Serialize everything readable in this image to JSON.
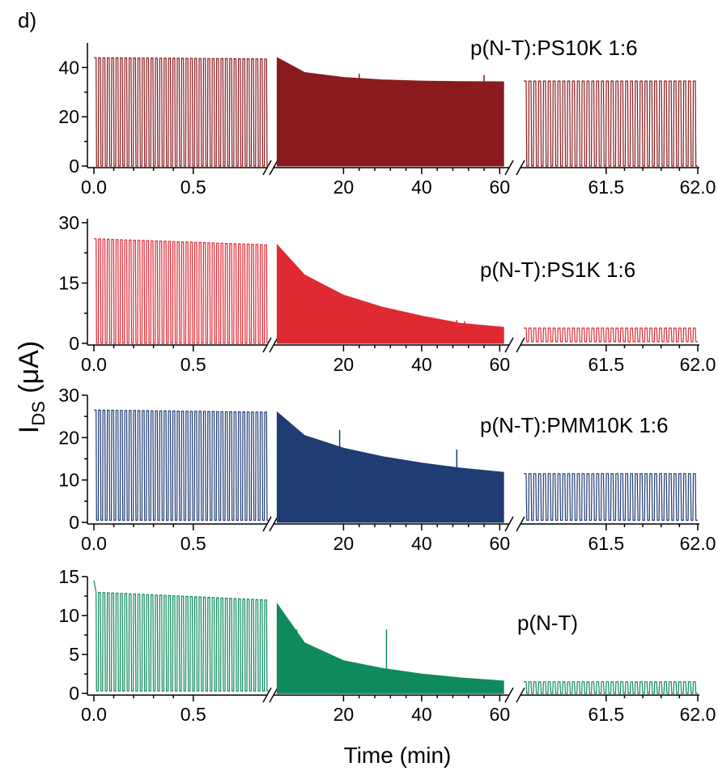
{
  "figure": {
    "panel_label": "d)",
    "xlabel": "Time (min)",
    "ylabel_main": "I",
    "ylabel_sub": "DS",
    "ylabel_unit": " (μA)"
  },
  "chart_data": [
    {
      "type": "line",
      "title": "p(N-T):PS10K 1:6",
      "color": "#8b1a1e",
      "ylim": [
        0,
        50
      ],
      "yticks": [
        0,
        20,
        40
      ],
      "ytick_labels": [
        "0",
        "20",
        "40"
      ],
      "segments": [
        {
          "kind": "pulses",
          "xlim": [
            0.0,
            0.88
          ],
          "xticks": [
            0.0,
            0.5
          ],
          "xtick_labels": [
            "0.0",
            "0.5"
          ],
          "cycles": 40,
          "high_start": 44,
          "high_end": 43.5,
          "low": 0
        },
        {
          "kind": "filled",
          "xlim": [
            2.5,
            62.0
          ],
          "xticks": [
            20,
            40,
            60
          ],
          "xtick_labels": [
            "20",
            "40",
            "60"
          ],
          "envelope_x": [
            3,
            10,
            20,
            30,
            40,
            50,
            61
          ],
          "envelope_y": [
            44,
            38,
            36,
            35,
            34.5,
            34.3,
            34.2
          ],
          "spikes": [
            [
              24,
              37.5
            ],
            [
              56,
              37
            ]
          ]
        },
        {
          "kind": "pulses",
          "xlim": [
            61.05,
            62.0
          ],
          "xticks": [
            61.5,
            62.0
          ],
          "xtick_labels": [
            "61.5",
            "62.0"
          ],
          "cycles": 36,
          "high_start": 34.5,
          "high_end": 34.5,
          "low": 0
        }
      ]
    },
    {
      "type": "line",
      "title": "p(N-T):PS1K 1:6",
      "color": "#e02a33",
      "ylim": [
        0,
        31
      ],
      "yticks": [
        0,
        15,
        30
      ],
      "ytick_labels": [
        "0",
        "15",
        "30"
      ],
      "segments": [
        {
          "kind": "pulses",
          "xlim": [
            0.0,
            0.88
          ],
          "xticks": [
            0.0,
            0.5
          ],
          "xtick_labels": [
            "0.0",
            "0.5"
          ],
          "cycles": 40,
          "high_start": 26,
          "high_end": 24.5,
          "low": 0
        },
        {
          "kind": "filled",
          "xlim": [
            2.5,
            62.0
          ],
          "xticks": [
            20,
            40,
            60
          ],
          "xtick_labels": [
            "20",
            "40",
            "60"
          ],
          "envelope_x": [
            3,
            10,
            20,
            30,
            40,
            50,
            61
          ],
          "envelope_y": [
            24.5,
            17,
            12,
            9,
            6.8,
            5,
            4
          ],
          "spikes": [
            [
              19,
              12.6
            ],
            [
              49,
              5.8
            ],
            [
              51,
              5.5
            ]
          ]
        },
        {
          "kind": "pulses",
          "xlim": [
            61.05,
            62.0
          ],
          "xticks": [
            61.5,
            62.0
          ],
          "xtick_labels": [
            "61.5",
            "62.0"
          ],
          "cycles": 36,
          "high_start": 3.8,
          "high_end": 3.8,
          "low": 0.4
        }
      ]
    },
    {
      "type": "line",
      "title": "p(N-T):PMM10K 1:6",
      "color": "#1f3d73",
      "ylim": [
        0,
        30
      ],
      "yticks": [
        0,
        10,
        20,
        30
      ],
      "ytick_labels": [
        "0",
        "10",
        "20",
        "30"
      ],
      "segments": [
        {
          "kind": "pulses",
          "xlim": [
            0.0,
            0.88
          ],
          "xticks": [
            0.0,
            0.5
          ],
          "xtick_labels": [
            "0.0",
            "0.5"
          ],
          "cycles": 40,
          "high_start": 26.5,
          "high_end": 26,
          "low": 0.5
        },
        {
          "kind": "filled",
          "xlim": [
            2.5,
            62.0
          ],
          "xticks": [
            20,
            40,
            60
          ],
          "xtick_labels": [
            "20",
            "40",
            "60"
          ],
          "envelope_x": [
            3,
            10,
            20,
            30,
            40,
            50,
            61
          ],
          "envelope_y": [
            26,
            20.5,
            17.5,
            15.5,
            14,
            12.8,
            11.8
          ],
          "spikes": [
            [
              19,
              21.8
            ],
            [
              49,
              17.2
            ]
          ]
        },
        {
          "kind": "pulses",
          "xlim": [
            61.05,
            62.0
          ],
          "xticks": [
            61.5,
            62.0
          ],
          "xtick_labels": [
            "61.5",
            "62.0"
          ],
          "cycles": 36,
          "high_start": 11.5,
          "high_end": 11.5,
          "low": 0.5
        }
      ]
    },
    {
      "type": "line",
      "title": "p(N-T)",
      "color": "#0f8a5c",
      "ylim": [
        -0.5,
        15
      ],
      "yticks": [
        0,
        5,
        10,
        15
      ],
      "ytick_labels": [
        "0",
        "5",
        "10",
        "15"
      ],
      "segments": [
        {
          "kind": "pulses",
          "xlim": [
            0.0,
            0.88
          ],
          "xticks": [
            0.0,
            0.5
          ],
          "xtick_labels": [
            "0.0",
            "0.5"
          ],
          "cycles": 40,
          "high_start": 13,
          "high_end": 12,
          "low": 0.3,
          "initial_peak": 14.5
        },
        {
          "kind": "filled",
          "xlim": [
            2.5,
            62.0
          ],
          "xticks": [
            20,
            40,
            60
          ],
          "xtick_labels": [
            "20",
            "40",
            "60"
          ],
          "envelope_x": [
            3,
            10,
            20,
            30,
            40,
            50,
            61
          ],
          "envelope_y": [
            11.5,
            6.5,
            4.2,
            3.2,
            2.5,
            2.0,
            1.6
          ],
          "spikes": [
            [
              8,
              8.2
            ],
            [
              31,
              8.2
            ]
          ]
        },
        {
          "kind": "pulses",
          "xlim": [
            61.05,
            62.0
          ],
          "xticks": [
            61.5,
            62.0
          ],
          "xtick_labels": [
            "61.5",
            "62.0"
          ],
          "cycles": 36,
          "high_start": 1.5,
          "high_end": 1.5,
          "low": 0
        }
      ]
    }
  ]
}
